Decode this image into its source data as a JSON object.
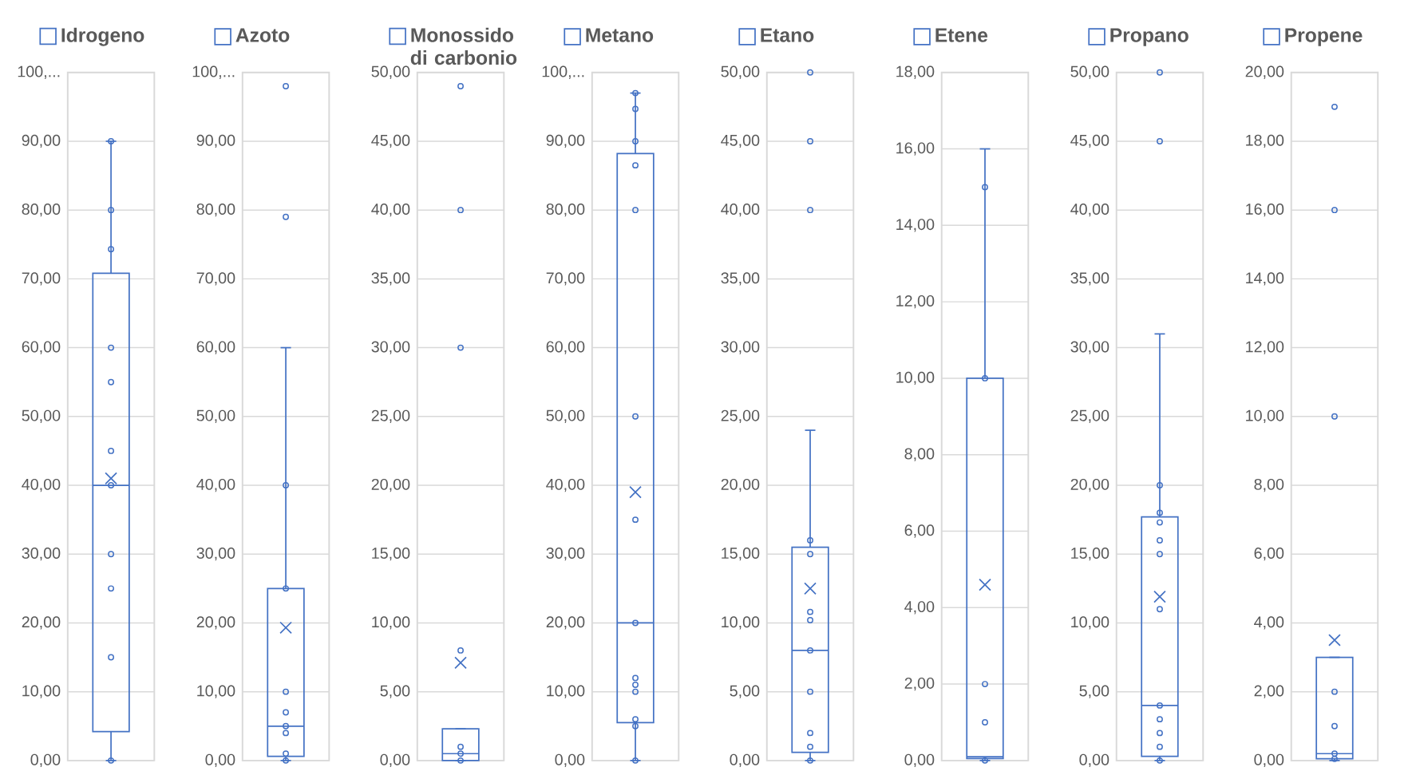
{
  "chart_data": [
    {
      "type": "box",
      "categories": [
        null
      ],
      "legend": "top",
      "grid": "y",
      "marker": "circle",
      "ylim": [
        0,
        100
      ],
      "yticks": [
        {
          "value": 0,
          "label": "0,00"
        },
        {
          "value": 10,
          "label": "10,00"
        },
        {
          "value": 20,
          "label": "20,00"
        },
        {
          "value": 30,
          "label": "30,00"
        },
        {
          "value": 40,
          "label": "40,00"
        },
        {
          "value": 50,
          "label": "50,00"
        },
        {
          "value": 60,
          "label": "60,00"
        },
        {
          "value": 70,
          "label": "70,00"
        },
        {
          "value": 80,
          "label": "80,00"
        },
        {
          "value": 90,
          "label": "90,00"
        },
        {
          "value": 100,
          "label": "100,..."
        }
      ],
      "series": [
        {
          "name": "Idrogeno",
          "color": "#4472c4",
          "boxes": [
            {
              "low": 0,
              "q1": 4.2,
              "median": 40,
              "q3": 70.8,
              "high": 90,
              "mean": 41
            }
          ]
        },
        {
          "type": "scatter",
          "color": "#4472c4",
          "values": [
            0
          ]
        },
        {
          "type": "scatter",
          "color": "#4472c4",
          "values": [
            15
          ]
        },
        {
          "type": "scatter",
          "color": "#4472c4",
          "values": [
            25
          ]
        },
        {
          "type": "scatter",
          "color": "#4472c4",
          "values": [
            30
          ]
        },
        {
          "type": "scatter",
          "color": "#4472c4",
          "values": [
            40
          ]
        },
        {
          "type": "scatter",
          "color": "#4472c4",
          "values": [
            45
          ]
        },
        {
          "type": "scatter",
          "color": "#4472c4",
          "values": [
            55
          ]
        },
        {
          "type": "scatter",
          "color": "#4472c4",
          "values": [
            60
          ]
        },
        {
          "type": "scatter",
          "color": "#4472c4",
          "values": [
            74.3
          ]
        },
        {
          "type": "scatter",
          "color": "#4472c4",
          "values": [
            80
          ]
        },
        {
          "type": "scatter",
          "color": "#4472c4",
          "values": [
            90
          ]
        }
      ]
    },
    {
      "type": "box",
      "categories": [
        null
      ],
      "legend": "top",
      "grid": "y",
      "marker": "circle",
      "ylim": [
        0,
        100
      ],
      "yticks": [
        {
          "value": 0,
          "label": "0,00"
        },
        {
          "value": 10,
          "label": "10,00"
        },
        {
          "value": 20,
          "label": "20,00"
        },
        {
          "value": 30,
          "label": "30,00"
        },
        {
          "value": 40,
          "label": "40,00"
        },
        {
          "value": 50,
          "label": "50,00"
        },
        {
          "value": 60,
          "label": "60,00"
        },
        {
          "value": 70,
          "label": "70,00"
        },
        {
          "value": 80,
          "label": "80,00"
        },
        {
          "value": 90,
          "label": "90,00"
        },
        {
          "value": 100,
          "label": "100,..."
        }
      ],
      "series": [
        {
          "name": "Azoto",
          "color": "#4472c4",
          "boxes": [
            {
              "low": 0,
              "q1": 0.6,
              "median": 5,
              "q3": 25,
              "high": 60,
              "mean": 19.3,
              "outliers": [
                79,
                98
              ]
            }
          ]
        },
        {
          "type": "scatter",
          "color": "#4472c4",
          "values": [
            0
          ]
        },
        {
          "type": "scatter",
          "color": "#4472c4",
          "values": [
            1
          ]
        },
        {
          "type": "scatter",
          "color": "#4472c4",
          "values": [
            4
          ]
        },
        {
          "type": "scatter",
          "color": "#4472c4",
          "values": [
            5
          ]
        },
        {
          "type": "scatter",
          "color": "#4472c4",
          "values": [
            7
          ]
        },
        {
          "type": "scatter",
          "color": "#4472c4",
          "values": [
            10
          ]
        },
        {
          "type": "scatter",
          "color": "#4472c4",
          "values": [
            25
          ]
        },
        {
          "type": "scatter",
          "color": "#4472c4",
          "values": [
            40
          ]
        }
      ]
    },
    {
      "type": "box",
      "categories": [
        null
      ],
      "legend": "top",
      "grid": "y",
      "marker": "circle",
      "ylim": [
        0,
        50
      ],
      "yticks": [
        {
          "value": 0,
          "label": "0,00"
        },
        {
          "value": 5,
          "label": "5,00"
        },
        {
          "value": 10,
          "label": "10,00"
        },
        {
          "value": 15,
          "label": "15,00"
        },
        {
          "value": 20,
          "label": "20,00"
        },
        {
          "value": 25,
          "label": "25,00"
        },
        {
          "value": 30,
          "label": "30,00"
        },
        {
          "value": 35,
          "label": "35,00"
        },
        {
          "value": 40,
          "label": "40,00"
        },
        {
          "value": 45,
          "label": "45,00"
        },
        {
          "value": 50,
          "label": "50,00"
        }
      ],
      "series": [
        {
          "name": "Monossido di carbonio",
          "color": "#4472c4",
          "boxes": [
            {
              "low": 0,
              "q1": 0,
              "median": 0.5,
              "q3": 2.3,
              "high": 2.3,
              "mean": 7.1,
              "outliers": [
                8,
                30,
                40,
                49
              ]
            }
          ]
        },
        {
          "type": "scatter",
          "color": "#4472c4",
          "values": [
            0
          ]
        },
        {
          "type": "scatter",
          "color": "#4472c4",
          "values": [
            0.5
          ]
        },
        {
          "type": "scatter",
          "color": "#4472c4",
          "values": [
            1
          ]
        }
      ]
    },
    {
      "type": "box",
      "categories": [
        null
      ],
      "legend": "top",
      "grid": "y",
      "marker": "circle",
      "ylim": [
        0,
        100
      ],
      "yticks": [
        {
          "value": 0,
          "label": "0,00"
        },
        {
          "value": 10,
          "label": "10,00"
        },
        {
          "value": 20,
          "label": "20,00"
        },
        {
          "value": 30,
          "label": "30,00"
        },
        {
          "value": 40,
          "label": "40,00"
        },
        {
          "value": 50,
          "label": "50,00"
        },
        {
          "value": 60,
          "label": "60,00"
        },
        {
          "value": 70,
          "label": "70,00"
        },
        {
          "value": 80,
          "label": "80,00"
        },
        {
          "value": 90,
          "label": "90,00"
        },
        {
          "value": 100,
          "label": "100,..."
        }
      ],
      "series": [
        {
          "name": "Metano",
          "color": "#4472c4",
          "boxes": [
            {
              "low": 0,
              "q1": 5.5,
              "median": 20,
              "q3": 88.2,
              "high": 97,
              "mean": 39
            }
          ]
        },
        {
          "type": "scatter",
          "color": "#4472c4",
          "values": [
            0
          ]
        },
        {
          "type": "scatter",
          "color": "#4472c4",
          "values": [
            5
          ]
        },
        {
          "type": "scatter",
          "color": "#4472c4",
          "values": [
            6
          ]
        },
        {
          "type": "scatter",
          "color": "#4472c4",
          "values": [
            10
          ]
        },
        {
          "type": "scatter",
          "color": "#4472c4",
          "values": [
            11
          ]
        },
        {
          "type": "scatter",
          "color": "#4472c4",
          "values": [
            12
          ]
        },
        {
          "type": "scatter",
          "color": "#4472c4",
          "values": [
            20
          ]
        },
        {
          "type": "scatter",
          "color": "#4472c4",
          "values": [
            35
          ]
        },
        {
          "type": "scatter",
          "color": "#4472c4",
          "values": [
            50
          ]
        },
        {
          "type": "scatter",
          "color": "#4472c4",
          "values": [
            80
          ]
        },
        {
          "type": "scatter",
          "color": "#4472c4",
          "values": [
            86.5
          ]
        },
        {
          "type": "scatter",
          "color": "#4472c4",
          "values": [
            90
          ]
        },
        {
          "type": "scatter",
          "color": "#4472c4",
          "values": [
            94.7
          ]
        },
        {
          "type": "scatter",
          "color": "#4472c4",
          "values": [
            97
          ]
        }
      ]
    },
    {
      "type": "box",
      "categories": [
        null
      ],
      "legend": "top",
      "grid": "y",
      "marker": "circle",
      "ylim": [
        0,
        50
      ],
      "yticks": [
        {
          "value": 0,
          "label": "0,00"
        },
        {
          "value": 5,
          "label": "5,00"
        },
        {
          "value": 10,
          "label": "10,00"
        },
        {
          "value": 15,
          "label": "15,00"
        },
        {
          "value": 20,
          "label": "20,00"
        },
        {
          "value": 25,
          "label": "25,00"
        },
        {
          "value": 30,
          "label": "30,00"
        },
        {
          "value": 35,
          "label": "35,00"
        },
        {
          "value": 40,
          "label": "40,00"
        },
        {
          "value": 45,
          "label": "45,00"
        },
        {
          "value": 50,
          "label": "50,00"
        }
      ],
      "series": [
        {
          "name": "Etano",
          "color": "#4472c4",
          "boxes": [
            {
              "low": 0,
              "q1": 0.6,
              "median": 8,
              "q3": 15.5,
              "high": 24,
              "mean": 12.5,
              "outliers": [
                40,
                45,
                50
              ]
            }
          ]
        },
        {
          "type": "scatter",
          "color": "#4472c4",
          "values": [
            0
          ]
        },
        {
          "type": "scatter",
          "color": "#4472c4",
          "values": [
            1
          ]
        },
        {
          "type": "scatter",
          "color": "#4472c4",
          "values": [
            2
          ]
        },
        {
          "type": "scatter",
          "color": "#4472c4",
          "values": [
            5
          ]
        },
        {
          "type": "scatter",
          "color": "#4472c4",
          "values": [
            8
          ]
        },
        {
          "type": "scatter",
          "color": "#4472c4",
          "values": [
            10.2
          ]
        },
        {
          "type": "scatter",
          "color": "#4472c4",
          "values": [
            10.8
          ]
        },
        {
          "type": "scatter",
          "color": "#4472c4",
          "values": [
            15
          ]
        },
        {
          "type": "scatter",
          "color": "#4472c4",
          "values": [
            16
          ]
        }
      ]
    },
    {
      "type": "box",
      "categories": [
        null
      ],
      "legend": "top",
      "grid": "y",
      "marker": "circle",
      "ylim": [
        0,
        18
      ],
      "yticks": [
        {
          "value": 0,
          "label": "0,00"
        },
        {
          "value": 2,
          "label": "2,00"
        },
        {
          "value": 4,
          "label": "4,00"
        },
        {
          "value": 6,
          "label": "6,00"
        },
        {
          "value": 8,
          "label": "8,00"
        },
        {
          "value": 10,
          "label": "10,00"
        },
        {
          "value": 12,
          "label": "12,00"
        },
        {
          "value": 14,
          "label": "14,00"
        },
        {
          "value": 16,
          "label": "16,00"
        },
        {
          "value": 18,
          "label": "18,00"
        }
      ],
      "series": [
        {
          "name": "Etene",
          "color": "#4472c4",
          "boxes": [
            {
              "low": 0,
              "q1": 0.05,
              "median": 0.1,
              "q3": 10,
              "high": 16,
              "mean": 4.6
            }
          ]
        },
        {
          "type": "scatter",
          "color": "#4472c4",
          "values": [
            0
          ]
        },
        {
          "type": "scatter",
          "color": "#4472c4",
          "values": [
            1
          ]
        },
        {
          "type": "scatter",
          "color": "#4472c4",
          "values": [
            2
          ]
        },
        {
          "type": "scatter",
          "color": "#4472c4",
          "values": [
            10
          ]
        },
        {
          "type": "scatter",
          "color": "#4472c4",
          "values": [
            15
          ]
        }
      ]
    },
    {
      "type": "box",
      "categories": [
        null
      ],
      "legend": "top",
      "grid": "y",
      "marker": "circle",
      "ylim": [
        0,
        50
      ],
      "yticks": [
        {
          "value": 0,
          "label": "0,00"
        },
        {
          "value": 5,
          "label": "5,00"
        },
        {
          "value": 10,
          "label": "10,00"
        },
        {
          "value": 15,
          "label": "15,00"
        },
        {
          "value": 20,
          "label": "20,00"
        },
        {
          "value": 25,
          "label": "25,00"
        },
        {
          "value": 30,
          "label": "30,00"
        },
        {
          "value": 35,
          "label": "35,00"
        },
        {
          "value": 40,
          "label": "40,00"
        },
        {
          "value": 45,
          "label": "45,00"
        },
        {
          "value": 50,
          "label": "50,00"
        }
      ],
      "series": [
        {
          "name": "Propano",
          "color": "#4472c4",
          "boxes": [
            {
              "low": 0,
              "q1": 0.3,
              "median": 4,
              "q3": 17.7,
              "high": 31,
              "mean": 11.9,
              "outliers": [
                45,
                50
              ]
            }
          ]
        },
        {
          "type": "scatter",
          "color": "#4472c4",
          "values": [
            0
          ]
        },
        {
          "type": "scatter",
          "color": "#4472c4",
          "values": [
            1
          ]
        },
        {
          "type": "scatter",
          "color": "#4472c4",
          "values": [
            2
          ]
        },
        {
          "type": "scatter",
          "color": "#4472c4",
          "values": [
            3
          ]
        },
        {
          "type": "scatter",
          "color": "#4472c4",
          "values": [
            4
          ]
        },
        {
          "type": "scatter",
          "color": "#4472c4",
          "values": [
            11
          ]
        },
        {
          "type": "scatter",
          "color": "#4472c4",
          "values": [
            15
          ]
        },
        {
          "type": "scatter",
          "color": "#4472c4",
          "values": [
            16
          ]
        },
        {
          "type": "scatter",
          "color": "#4472c4",
          "values": [
            17.3
          ]
        },
        {
          "type": "scatter",
          "color": "#4472c4",
          "values": [
            18
          ]
        },
        {
          "type": "scatter",
          "color": "#4472c4",
          "values": [
            20
          ]
        }
      ]
    },
    {
      "type": "box",
      "categories": [
        null
      ],
      "legend": "top",
      "grid": "y",
      "marker": "circle",
      "ylim": [
        0,
        20
      ],
      "yticks": [
        {
          "value": 0,
          "label": "0,00"
        },
        {
          "value": 2,
          "label": "2,00"
        },
        {
          "value": 4,
          "label": "4,00"
        },
        {
          "value": 6,
          "label": "6,00"
        },
        {
          "value": 8,
          "label": "8,00"
        },
        {
          "value": 10,
          "label": "10,00"
        },
        {
          "value": 12,
          "label": "12,00"
        },
        {
          "value": 14,
          "label": "14,00"
        },
        {
          "value": 16,
          "label": "16,00"
        },
        {
          "value": 18,
          "label": "18,00"
        },
        {
          "value": 20,
          "label": "20,00"
        }
      ],
      "series": [
        {
          "name": "Propene",
          "color": "#4472c4",
          "boxes": [
            {
              "low": 0,
              "q1": 0.05,
              "median": 0.2,
              "q3": 3,
              "high": 3,
              "mean": 3.5,
              "outliers": [
                10,
                16,
                19
              ]
            }
          ]
        },
        {
          "type": "scatter",
          "color": "#4472c4",
          "values": [
            0.05
          ]
        },
        {
          "type": "scatter",
          "color": "#4472c4",
          "values": [
            0.2
          ]
        },
        {
          "type": "scatter",
          "color": "#4472c4",
          "values": [
            1
          ]
        },
        {
          "type": "scatter",
          "color": "#4472c4",
          "values": [
            2
          ]
        }
      ]
    }
  ]
}
